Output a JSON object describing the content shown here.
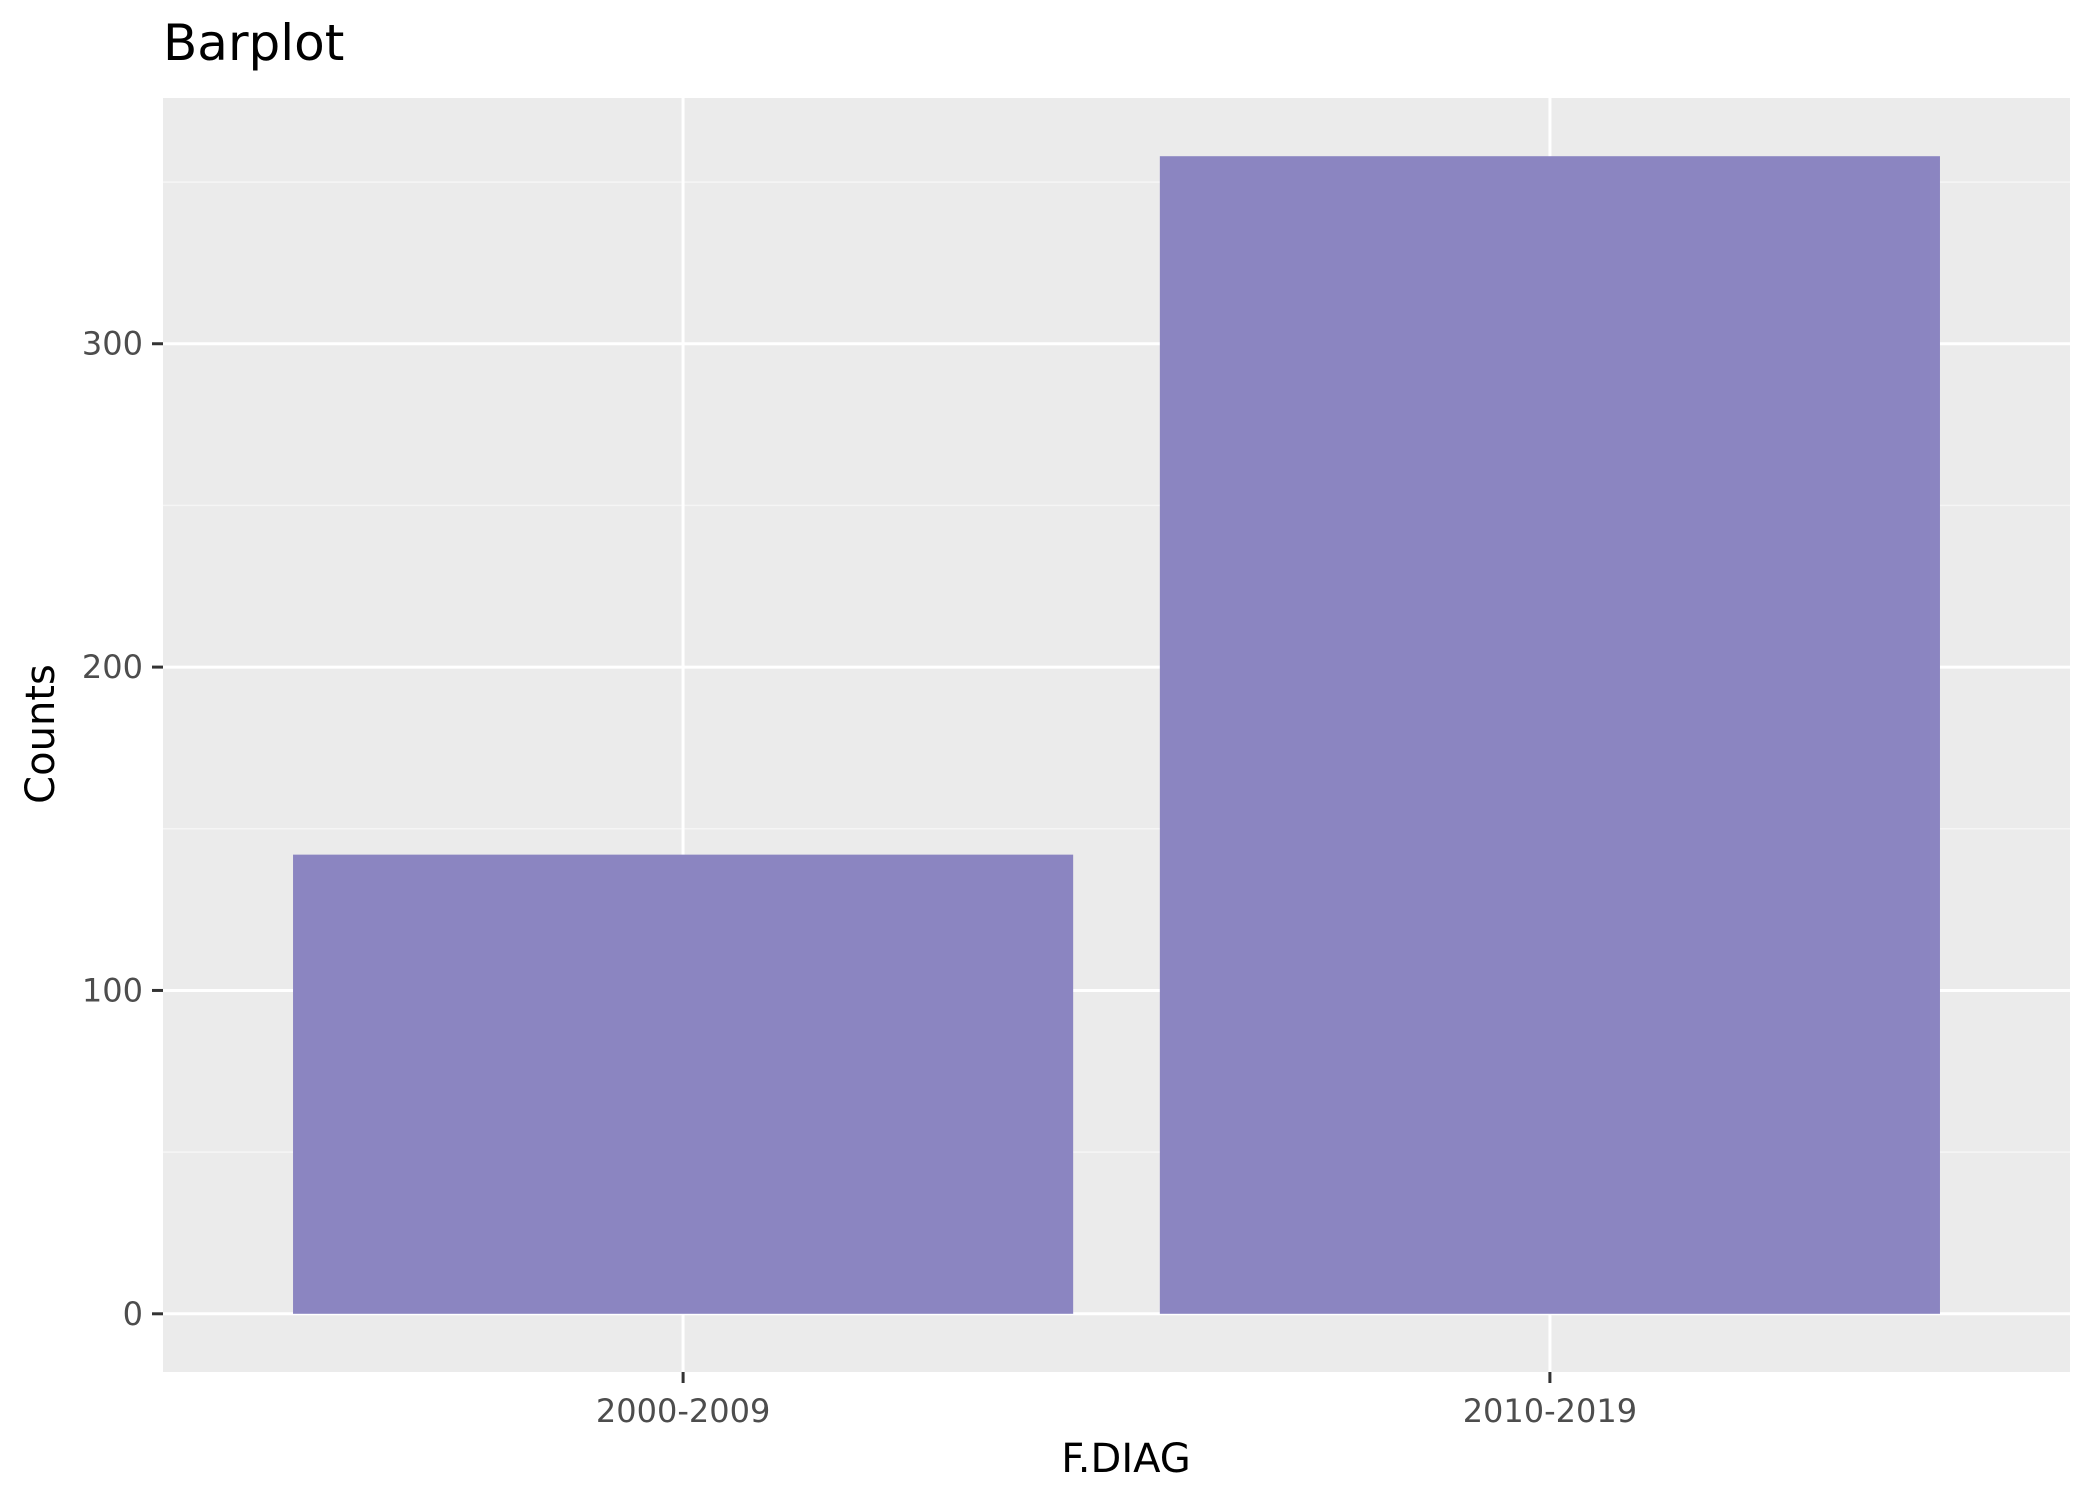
{
  "chart_data": {
    "type": "bar",
    "title": "Barplot",
    "xlabel": "F.DIAG",
    "ylabel": "Counts",
    "categories": [
      "2000-2009",
      "2010-2019"
    ],
    "values": [
      142,
      358
    ],
    "ylim": [
      -18,
      376
    ],
    "yticks": [
      0,
      100,
      200,
      300
    ],
    "ytick_labels": [
      "0",
      "100",
      "200",
      "300"
    ],
    "grid": true,
    "legend": "none"
  },
  "colors": {
    "panel_background": "#ebebeb",
    "grid_major": "#ffffff",
    "grid_minor": "#f5f5f5",
    "bar_fill": "#8b85c1",
    "tick_mark": "#333333",
    "tick_label": "#4d4d4d"
  }
}
